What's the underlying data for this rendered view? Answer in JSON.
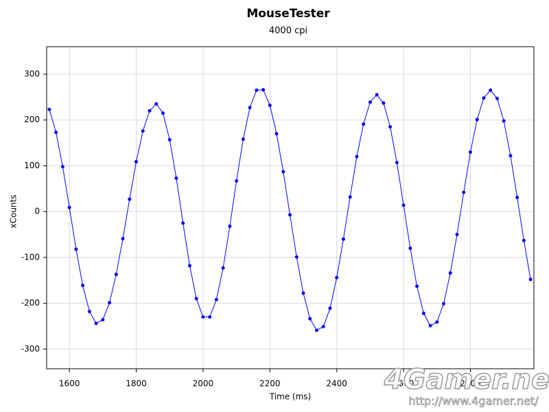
{
  "chart_data": {
    "type": "scatter",
    "title": "MouseTester",
    "subtitle": "4000 cpi",
    "x_label": "Time (ms)",
    "y_label": "xCounts",
    "x": [
      1540,
      1560,
      1580,
      1600,
      1620,
      1640,
      1660,
      1680,
      1700,
      1720,
      1740,
      1760,
      1780,
      1800,
      1820,
      1840,
      1860,
      1880,
      1900,
      1920,
      1940,
      1960,
      1980,
      2000,
      2020,
      2040,
      2060,
      2080,
      2100,
      2120,
      2140,
      2160,
      2180,
      2200,
      2220,
      2240,
      2260,
      2280,
      2300,
      2320,
      2340,
      2360,
      2380,
      2400,
      2420,
      2440,
      2460,
      2480,
      2500,
      2520,
      2540,
      2560,
      2580,
      2600,
      2620,
      2640,
      2660,
      2680,
      2700,
      2720,
      2740,
      2760,
      2780,
      2800,
      2820,
      2840,
      2860,
      2880,
      2900,
      2920,
      2940,
      2960,
      2980
    ],
    "values": [
      223,
      173,
      98,
      9,
      -82,
      -161,
      -218,
      -244,
      -236,
      -199,
      -137,
      -59,
      27,
      109,
      176,
      220,
      235,
      215,
      157,
      73,
      -25,
      -118,
      -190,
      -230,
      -230,
      -192,
      -123,
      -32,
      67,
      158,
      227,
      265,
      266,
      232,
      170,
      87,
      -7,
      -99,
      -178,
      -234,
      -259,
      -251,
      -211,
      -144,
      -60,
      32,
      120,
      191,
      239,
      255,
      237,
      185,
      107,
      14,
      -80,
      -163,
      -222,
      -249,
      -241,
      -201,
      -134,
      -50,
      42,
      130,
      201,
      248,
      265,
      247,
      198,
      122,
      31,
      -63,
      -148
    ],
    "color": "#0000ff",
    "line": true,
    "xlim": [
      1532,
      2990
    ],
    "ylim": [
      -343,
      360
    ],
    "xticks": [
      1600,
      1800,
      2000,
      2200,
      2400,
      2600,
      2800
    ],
    "yticks": [
      -300,
      -200,
      -100,
      0,
      100,
      200,
      300
    ],
    "grid": true,
    "watermark": "4Gamer.net",
    "watermark_url": "http://www.4gamer.net/"
  }
}
